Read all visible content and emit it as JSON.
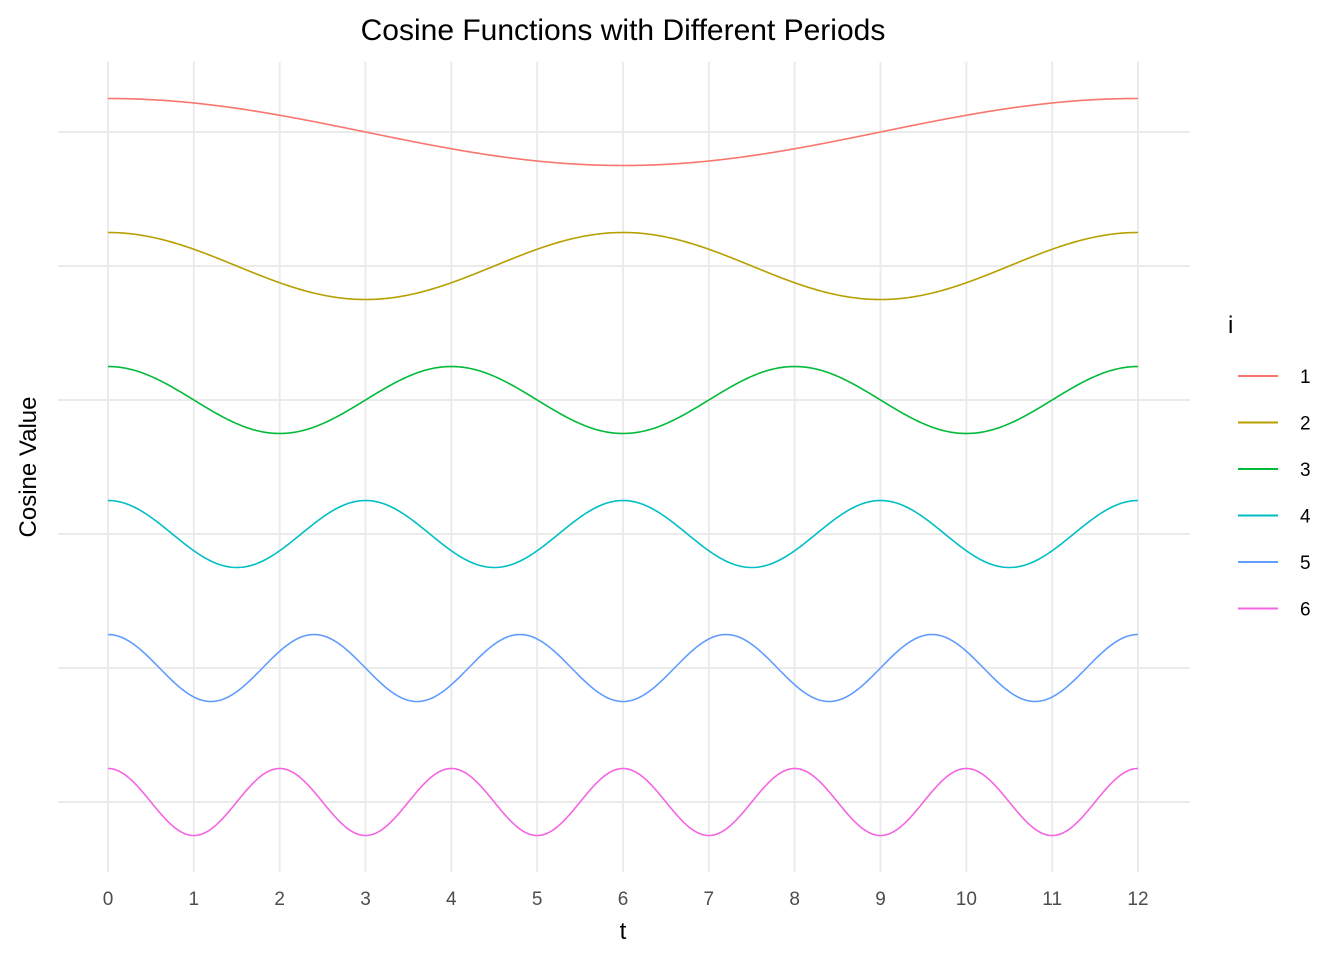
{
  "chart_data": {
    "type": "line",
    "title": "Cosine Functions with Different Periods",
    "xlabel": "t",
    "ylabel": "Cosine Value",
    "xlim": [
      0,
      12
    ],
    "x_ticks": [
      "0",
      "1",
      "2",
      "3",
      "4",
      "5",
      "6",
      "7",
      "8",
      "9",
      "10",
      "11",
      "12"
    ],
    "y_tick_labels_shown": false,
    "grid": true,
    "facet_layout": "stacked vertically, one row per series",
    "legend": {
      "title": "i",
      "position": "right"
    },
    "function": "cos(2*pi*t*i/12)",
    "series": [
      {
        "name": "1",
        "i": 1,
        "period": 12,
        "color": "#F8766D"
      },
      {
        "name": "2",
        "i": 2,
        "period": 6,
        "color": "#B79F00"
      },
      {
        "name": "3",
        "i": 3,
        "period": 4,
        "color": "#00BA38"
      },
      {
        "name": "4",
        "i": 4,
        "period": 3,
        "color": "#00BFC4"
      },
      {
        "name": "5",
        "i": 5,
        "period": 2.4,
        "color": "#619CFF"
      },
      {
        "name": "6",
        "i": 6,
        "period": 2,
        "color": "#F564E3"
      }
    ]
  }
}
